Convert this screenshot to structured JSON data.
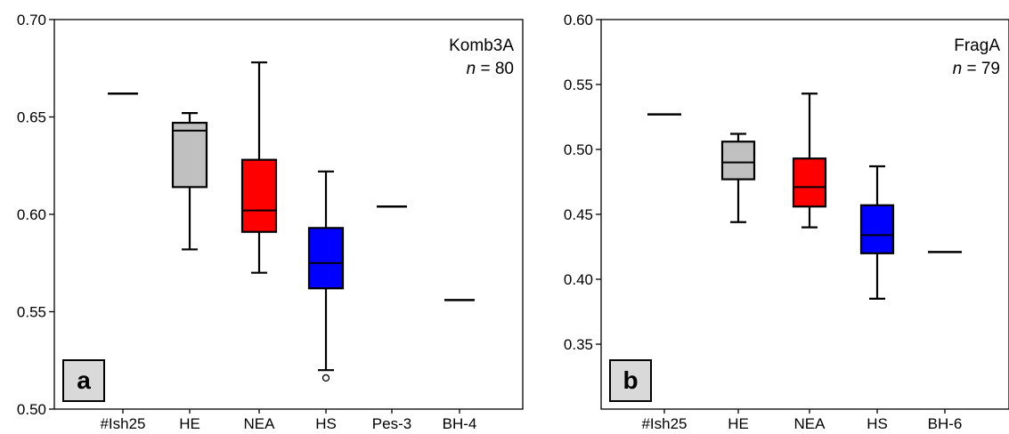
{
  "chart_data": [
    {
      "type": "box",
      "panel_label": "a",
      "label_line1": "Komb3A",
      "n_label": {
        "prefix": "n",
        "suffix": " = 80"
      },
      "ylim": [
        0.5,
        0.7
      ],
      "yticks": [
        "0.50",
        "0.55",
        "0.60",
        "0.65",
        "0.70"
      ],
      "grid": false,
      "categories": [
        "#Ish25",
        "HE",
        "NEA",
        "HS",
        "Pes-3",
        "BH-4"
      ],
      "boxes": [
        {
          "category": "#Ish25",
          "single": 0.662
        },
        {
          "category": "HE",
          "whisker_low": 0.582,
          "q1": 0.614,
          "median": 0.643,
          "q3": 0.647,
          "whisker_high": 0.652,
          "color": "#c0c0c0"
        },
        {
          "category": "NEA",
          "whisker_low": 0.57,
          "q1": 0.591,
          "median": 0.602,
          "q3": 0.628,
          "whisker_high": 0.678,
          "color": "#ff0000"
        },
        {
          "category": "HS",
          "whisker_low": 0.52,
          "q1": 0.562,
          "median": 0.575,
          "q3": 0.593,
          "whisker_high": 0.622,
          "color": "#0000ff",
          "outliers": [
            0.516
          ]
        },
        {
          "category": "Pes-3",
          "single": 0.604
        },
        {
          "category": "BH-4",
          "single": 0.556
        }
      ]
    },
    {
      "type": "box",
      "panel_label": "b",
      "label_line1": "FragA",
      "n_label": {
        "prefix": "n",
        "suffix": " = 79"
      },
      "ylim": [
        0.3,
        0.6
      ],
      "yticks": [
        "0.35",
        "0.40",
        "0.45",
        "0.50",
        "0.55",
        "0.60"
      ],
      "grid": false,
      "categories": [
        "#Ish25",
        "HE",
        "NEA",
        "HS",
        "BH-6"
      ],
      "boxes": [
        {
          "category": "#Ish25",
          "single": 0.527
        },
        {
          "category": "HE",
          "whisker_low": 0.444,
          "q1": 0.477,
          "median": 0.49,
          "q3": 0.506,
          "whisker_high": 0.512,
          "color": "#c0c0c0"
        },
        {
          "category": "NEA",
          "whisker_low": 0.44,
          "q1": 0.456,
          "median": 0.471,
          "q3": 0.493,
          "whisker_high": 0.543,
          "color": "#ff0000"
        },
        {
          "category": "HS",
          "whisker_low": 0.385,
          "q1": 0.42,
          "median": 0.434,
          "q3": 0.457,
          "whisker_high": 0.487,
          "color": "#0000ff"
        },
        {
          "category": "BH-6",
          "single": 0.421
        }
      ]
    }
  ]
}
